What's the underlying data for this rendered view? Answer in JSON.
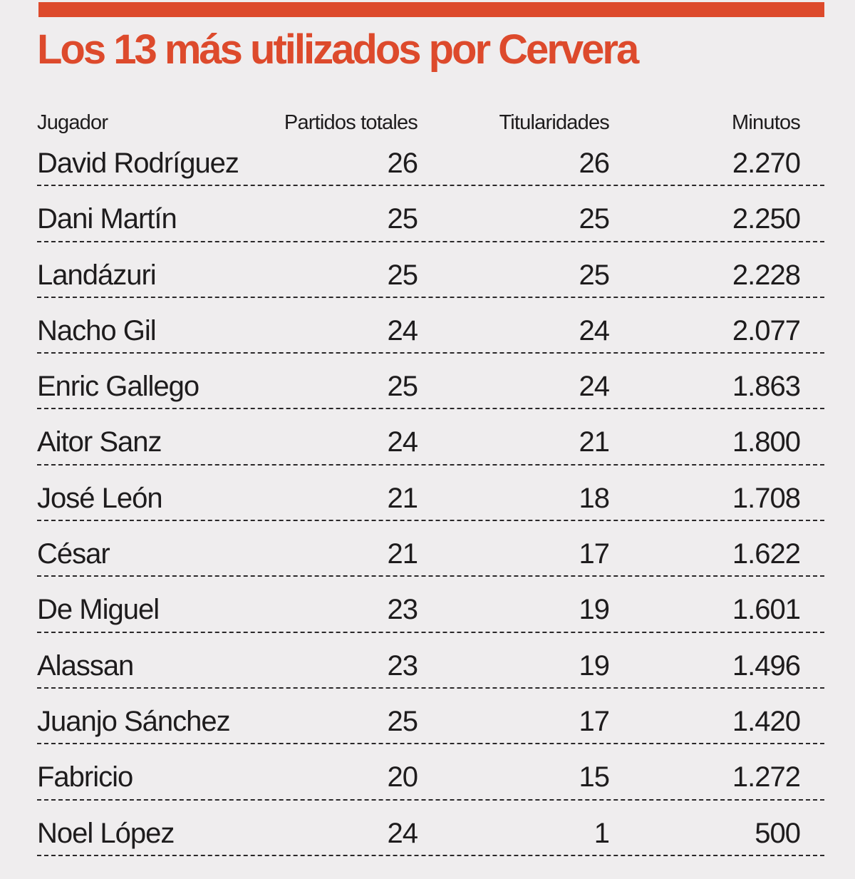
{
  "chart_data": {
    "type": "table",
    "title": "Los 13 más utilizados por Cervera",
    "columns": [
      "Jugador",
      "Partidos totales",
      "Titularidades",
      "Minutos"
    ],
    "rows": [
      [
        "David Rodríguez",
        "26",
        "26",
        "2.270"
      ],
      [
        "Dani Martín",
        "25",
        "25",
        "2.250"
      ],
      [
        "Landázuri",
        "25",
        "25",
        "2.228"
      ],
      [
        "Nacho Gil",
        "24",
        "24",
        "2.077"
      ],
      [
        "Enric Gallego",
        "25",
        "24",
        "1.863"
      ],
      [
        "Aitor Sanz",
        "24",
        "21",
        "1.800"
      ],
      [
        "José León",
        "21",
        "18",
        "1.708"
      ],
      [
        "César",
        "21",
        "17",
        "1.622"
      ],
      [
        "De Miguel",
        "23",
        "19",
        "1.601"
      ],
      [
        "Alassan",
        "23",
        "19",
        "1.496"
      ],
      [
        "Juanjo Sánchez",
        "25",
        "17",
        "1.420"
      ],
      [
        "Fabricio",
        "20",
        "15",
        "1.272"
      ],
      [
        "Noel López",
        "24",
        "1",
        "500"
      ]
    ]
  },
  "colors": {
    "accent": "#dd4a2c",
    "background": "#efedee",
    "text": "#1e1c1d"
  }
}
